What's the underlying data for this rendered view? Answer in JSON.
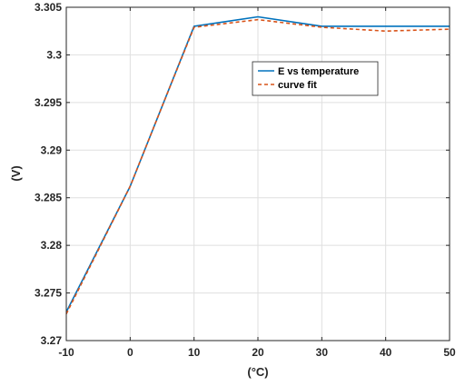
{
  "chart_data": {
    "type": "line",
    "title": "",
    "xlabel": "(°C)",
    "ylabel": "(V)",
    "xlim": [
      -10,
      50
    ],
    "ylim": [
      3.27,
      3.305
    ],
    "xticks": [
      "-10",
      "0",
      "10",
      "20",
      "30",
      "40",
      "50"
    ],
    "yticks": [
      "3.27",
      "3.275",
      "3.28",
      "3.285",
      "3.29",
      "3.295",
      "3.3",
      "3.305"
    ],
    "grid": true,
    "legend_position": "upper-right",
    "series": [
      {
        "name": "E vs temperature",
        "style": "solid",
        "color": "#0072BD",
        "x": [
          -10,
          0,
          10,
          20,
          30,
          40,
          50
        ],
        "y": [
          3.273,
          3.2862,
          3.303,
          3.304,
          3.303,
          3.303,
          3.303
        ]
      },
      {
        "name": "curve fit",
        "style": "dashed",
        "color": "#D95319",
        "x": [
          -10,
          -5,
          0,
          5,
          10,
          15,
          20,
          25,
          30,
          35,
          40,
          45,
          50
        ],
        "y": [
          3.2728,
          3.2795,
          3.2862,
          3.2946,
          3.3029,
          3.3033,
          3.3037,
          3.3033,
          3.3029,
          3.3027,
          3.3025,
          3.3026,
          3.3027
        ]
      }
    ]
  }
}
